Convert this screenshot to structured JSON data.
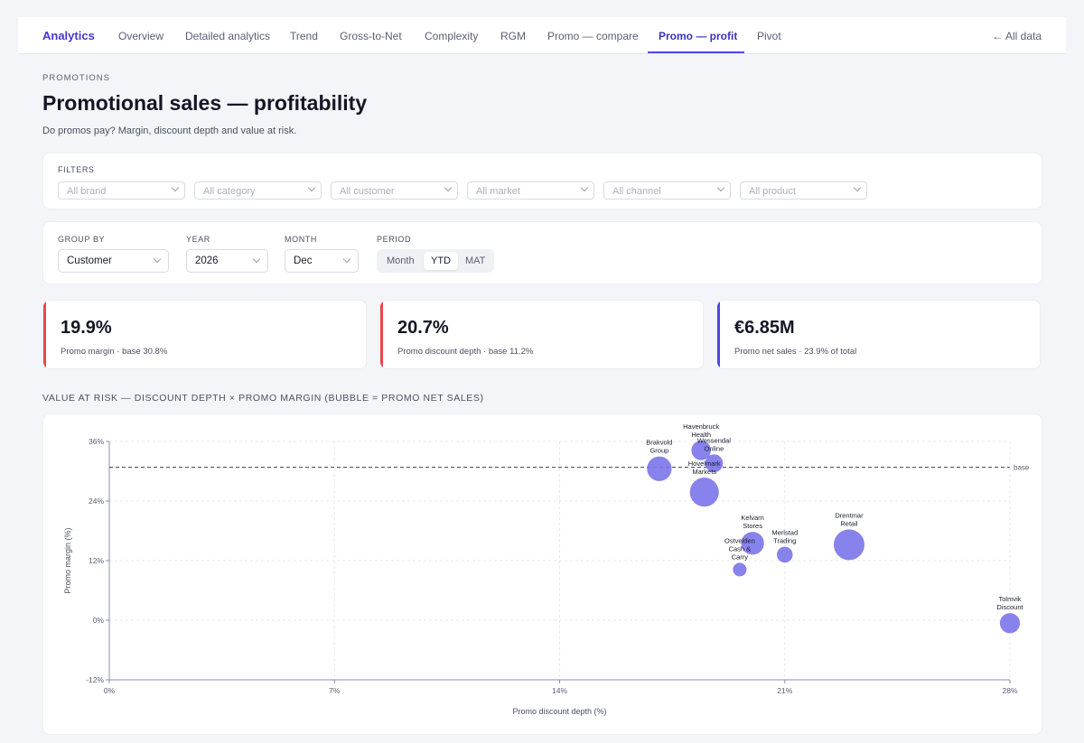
{
  "nav": {
    "brand": "Analytics",
    "tabs": [
      {
        "label": "Overview"
      },
      {
        "label": "Detailed analytics"
      },
      {
        "label": "Trend"
      },
      {
        "label": "Gross-to-Net"
      },
      {
        "label": "Complexity"
      },
      {
        "label": "RGM"
      },
      {
        "label": "Promo — compare"
      },
      {
        "label": "Promo — profit",
        "active": true
      },
      {
        "label": "Pivot"
      }
    ],
    "all_data": "All data",
    "all_data_icon": "arrow-left-icon"
  },
  "header": {
    "eyebrow": "PROMOTIONS",
    "title": "Promotional sales — profitability",
    "subtitle": "Do promos pay? Margin, discount depth and value at risk."
  },
  "filters": {
    "label": "FILTERS",
    "items": [
      {
        "placeholder": "All brand"
      },
      {
        "placeholder": "All category"
      },
      {
        "placeholder": "All customer"
      },
      {
        "placeholder": "All market"
      },
      {
        "placeholder": "All channel"
      },
      {
        "placeholder": "All product"
      }
    ]
  },
  "controls": {
    "group_by": {
      "label": "GROUP BY",
      "value": "Customer"
    },
    "year": {
      "label": "YEAR",
      "value": "2026"
    },
    "month": {
      "label": "MONTH",
      "value": "Dec"
    },
    "period": {
      "label": "PERIOD",
      "options": [
        "Month",
        "YTD",
        "MAT"
      ],
      "selected": "YTD"
    }
  },
  "kpis": [
    {
      "value": "19.9%",
      "caption": "Promo margin · base 30.8%",
      "color": "#e5484d"
    },
    {
      "value": "20.7%",
      "caption": "Promo discount depth · base 11.2%",
      "color": "#e5484d"
    },
    {
      "value": "€6.85M",
      "caption": "Promo net sales · 23.9% of total",
      "color": "#4f46e5"
    }
  ],
  "section_title": "VALUE AT RISK — DISCOUNT DEPTH × PROMO MARGIN (BUBBLE = PROMO NET SALES)",
  "colors": {
    "accent": "#4f46e5",
    "bubble": "#7b74ea",
    "negative": "#e5484d"
  },
  "chart_data": {
    "type": "scatter",
    "xlabel": "Promo discount depth (%)",
    "ylabel": "Promo margin (%)",
    "xlim": [
      0,
      28
    ],
    "ylim": [
      -12,
      36
    ],
    "xticks": [
      "0%",
      "7%",
      "14%",
      "21%",
      "28%"
    ],
    "yticks": [
      "-12%",
      "0%",
      "12%",
      "24%",
      "36%"
    ],
    "grid": true,
    "baseline": {
      "y": 30.8,
      "label": "base"
    },
    "points": [
      {
        "name": "Havenbruck Health",
        "x": 18.4,
        "y": 34.2,
        "size": 0.45
      },
      {
        "name": "Wessendal Online",
        "x": 18.8,
        "y": 31.6,
        "size": 0.38
      },
      {
        "name": "Brakvold Group",
        "x": 17.1,
        "y": 30.5,
        "size": 0.72
      },
      {
        "name": "Hovelmark Markets",
        "x": 18.5,
        "y": 25.8,
        "size": 1.0
      },
      {
        "name": "Kelvarn Stores",
        "x": 20.0,
        "y": 15.5,
        "size": 0.62
      },
      {
        "name": "Ostvelden Cash & Carry",
        "x": 19.6,
        "y": 10.2,
        "size": 0.22
      },
      {
        "name": "Merlstad Trading",
        "x": 21.0,
        "y": 13.2,
        "size": 0.3
      },
      {
        "name": "Drentmar Retail",
        "x": 23.0,
        "y": 15.2,
        "size": 1.12
      },
      {
        "name": "Tolmvik Discount",
        "x": 28.0,
        "y": -0.6,
        "size": 0.48
      }
    ]
  }
}
